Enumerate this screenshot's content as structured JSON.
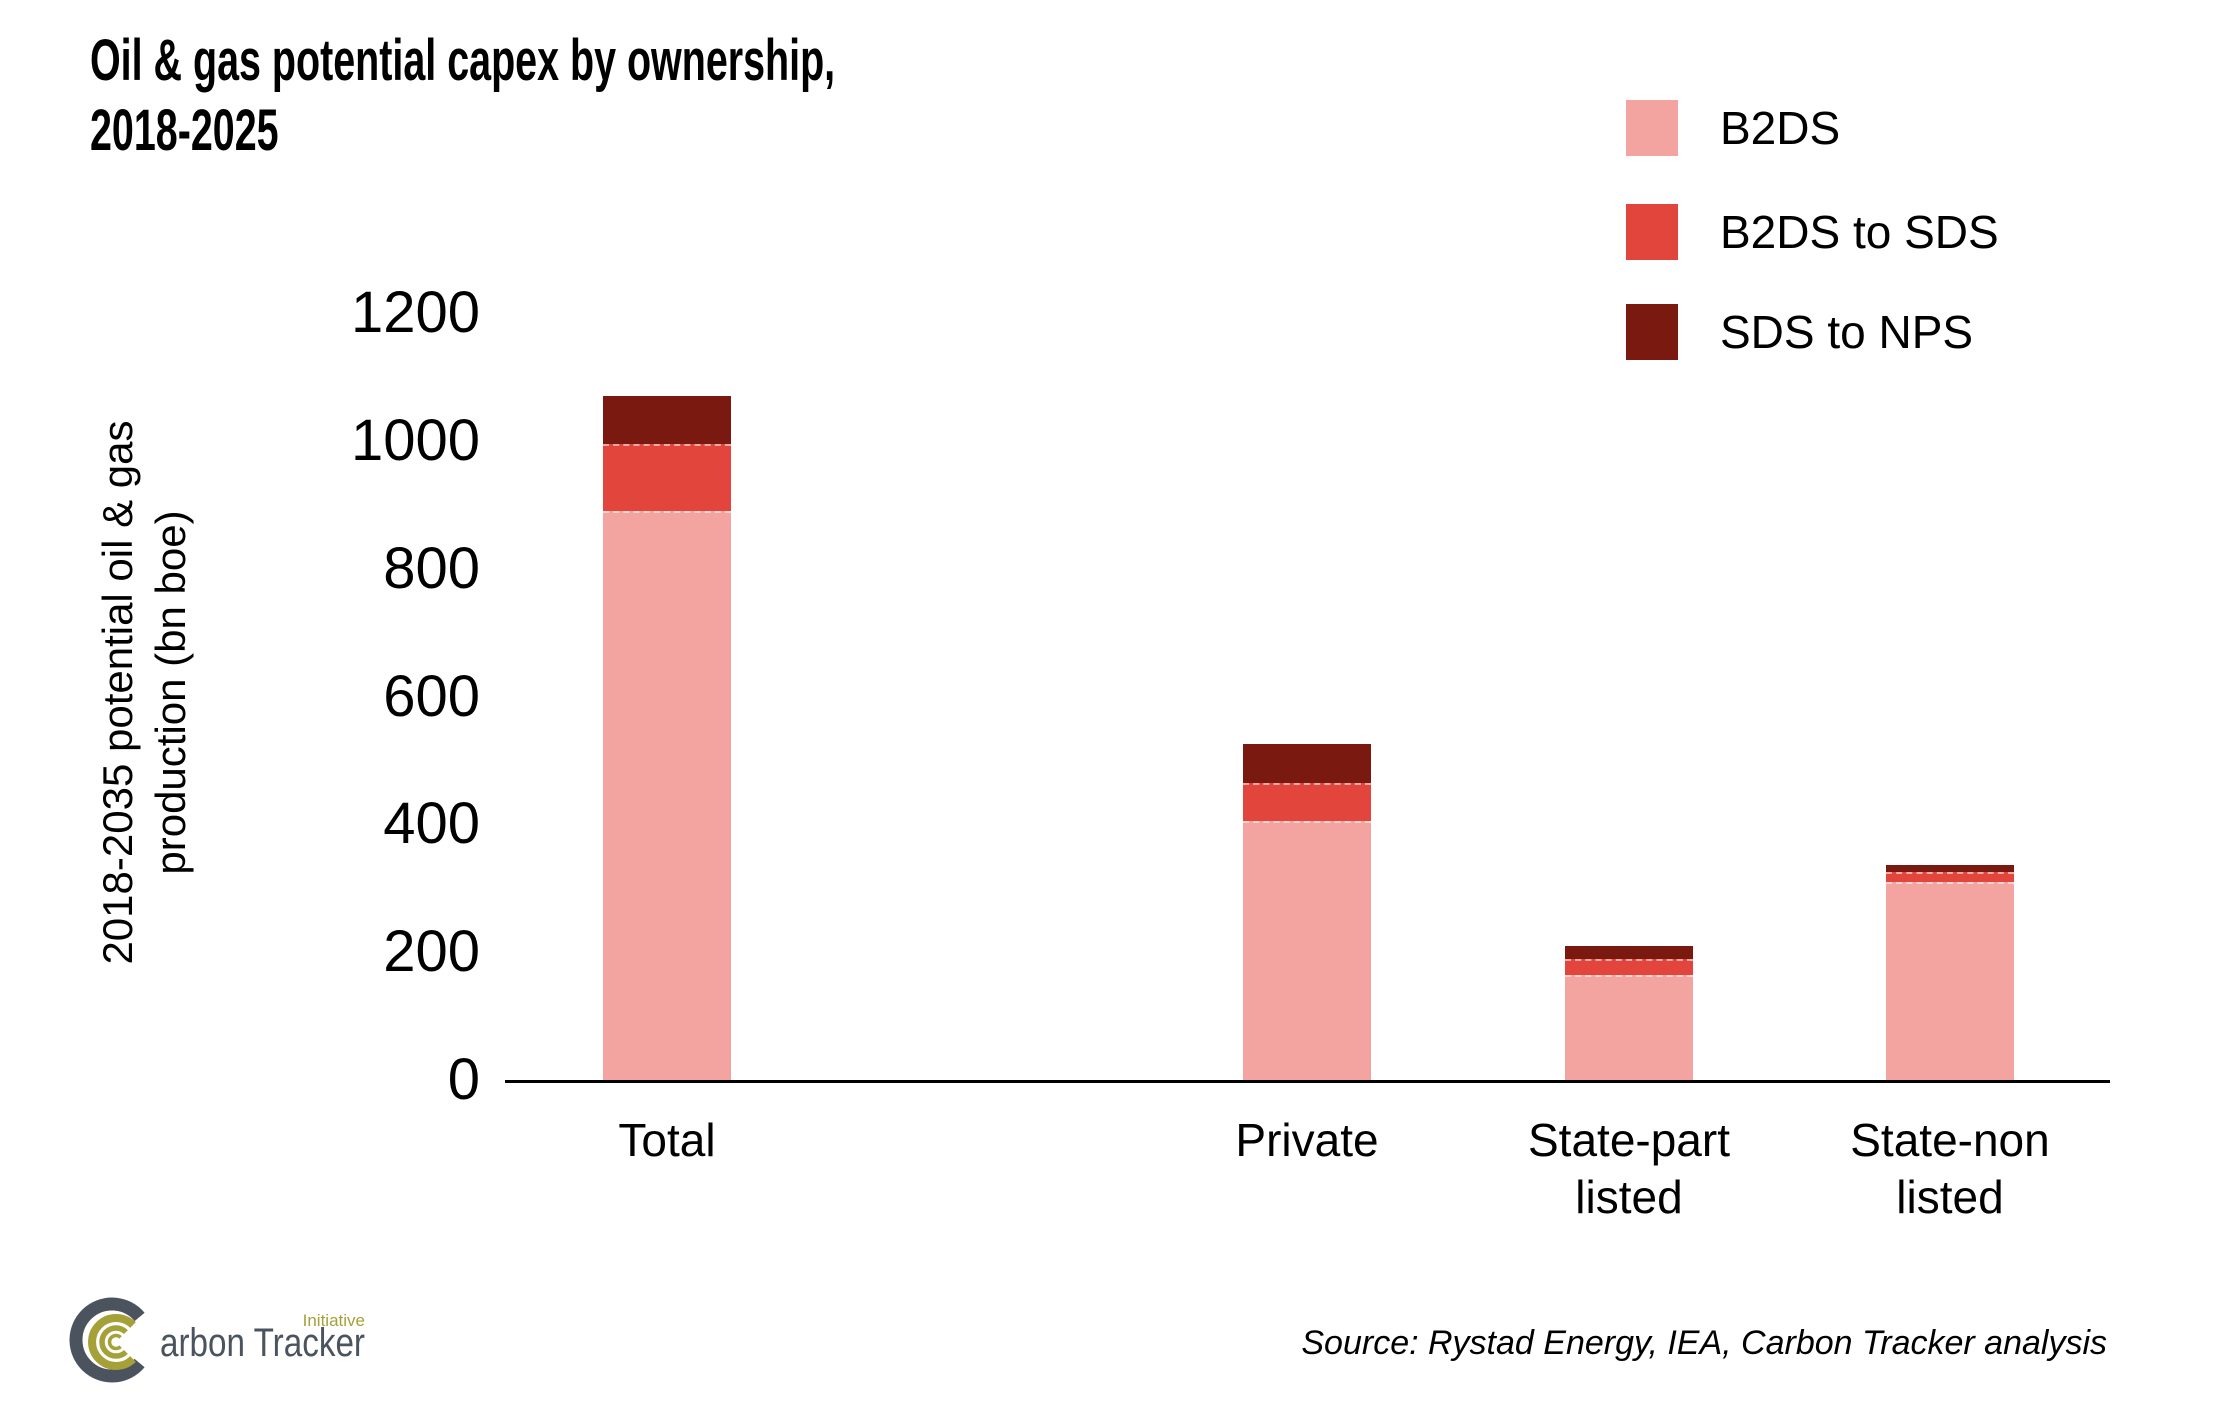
{
  "chart_data": {
    "type": "stacked_bar",
    "title": "Oil & gas potential capex by ownership,\n2018-2025",
    "ylabel": "2018-2035 potential oil & gas\nproduction (bn boe)",
    "unit": "bn boe",
    "categories": [
      "Total",
      "Private",
      "State-part\nlisted",
      "State-non\nlisted"
    ],
    "series": [
      {
        "name": "B2DS",
        "color": "#f3a4a1",
        "values": [
          890,
          405,
          165,
          310
        ]
      },
      {
        "name": "B2DS to SDS",
        "color": "#e2453c",
        "values": [
          105,
          60,
          25,
          15
        ]
      },
      {
        "name": "SDS to NPS",
        "color": "#7a190f",
        "values": [
          75,
          60,
          20,
          12
        ]
      }
    ],
    "stack_totals": [
      1070,
      525,
      210,
      337
    ],
    "ylim": [
      0,
      1200
    ],
    "yticks": [
      0,
      200,
      400,
      600,
      800,
      1000,
      1200
    ],
    "grid": false,
    "legend_position": "top-right",
    "source": "Source: Rystad Energy, IEA, Carbon Tracker analysis"
  },
  "logo": {
    "brand_rest": "arbon Tracker",
    "tagline": "Initiative",
    "gray": "#4b545e",
    "olive": "#a5a138"
  },
  "colors": {
    "axis": "#000000",
    "background": "#ffffff"
  }
}
